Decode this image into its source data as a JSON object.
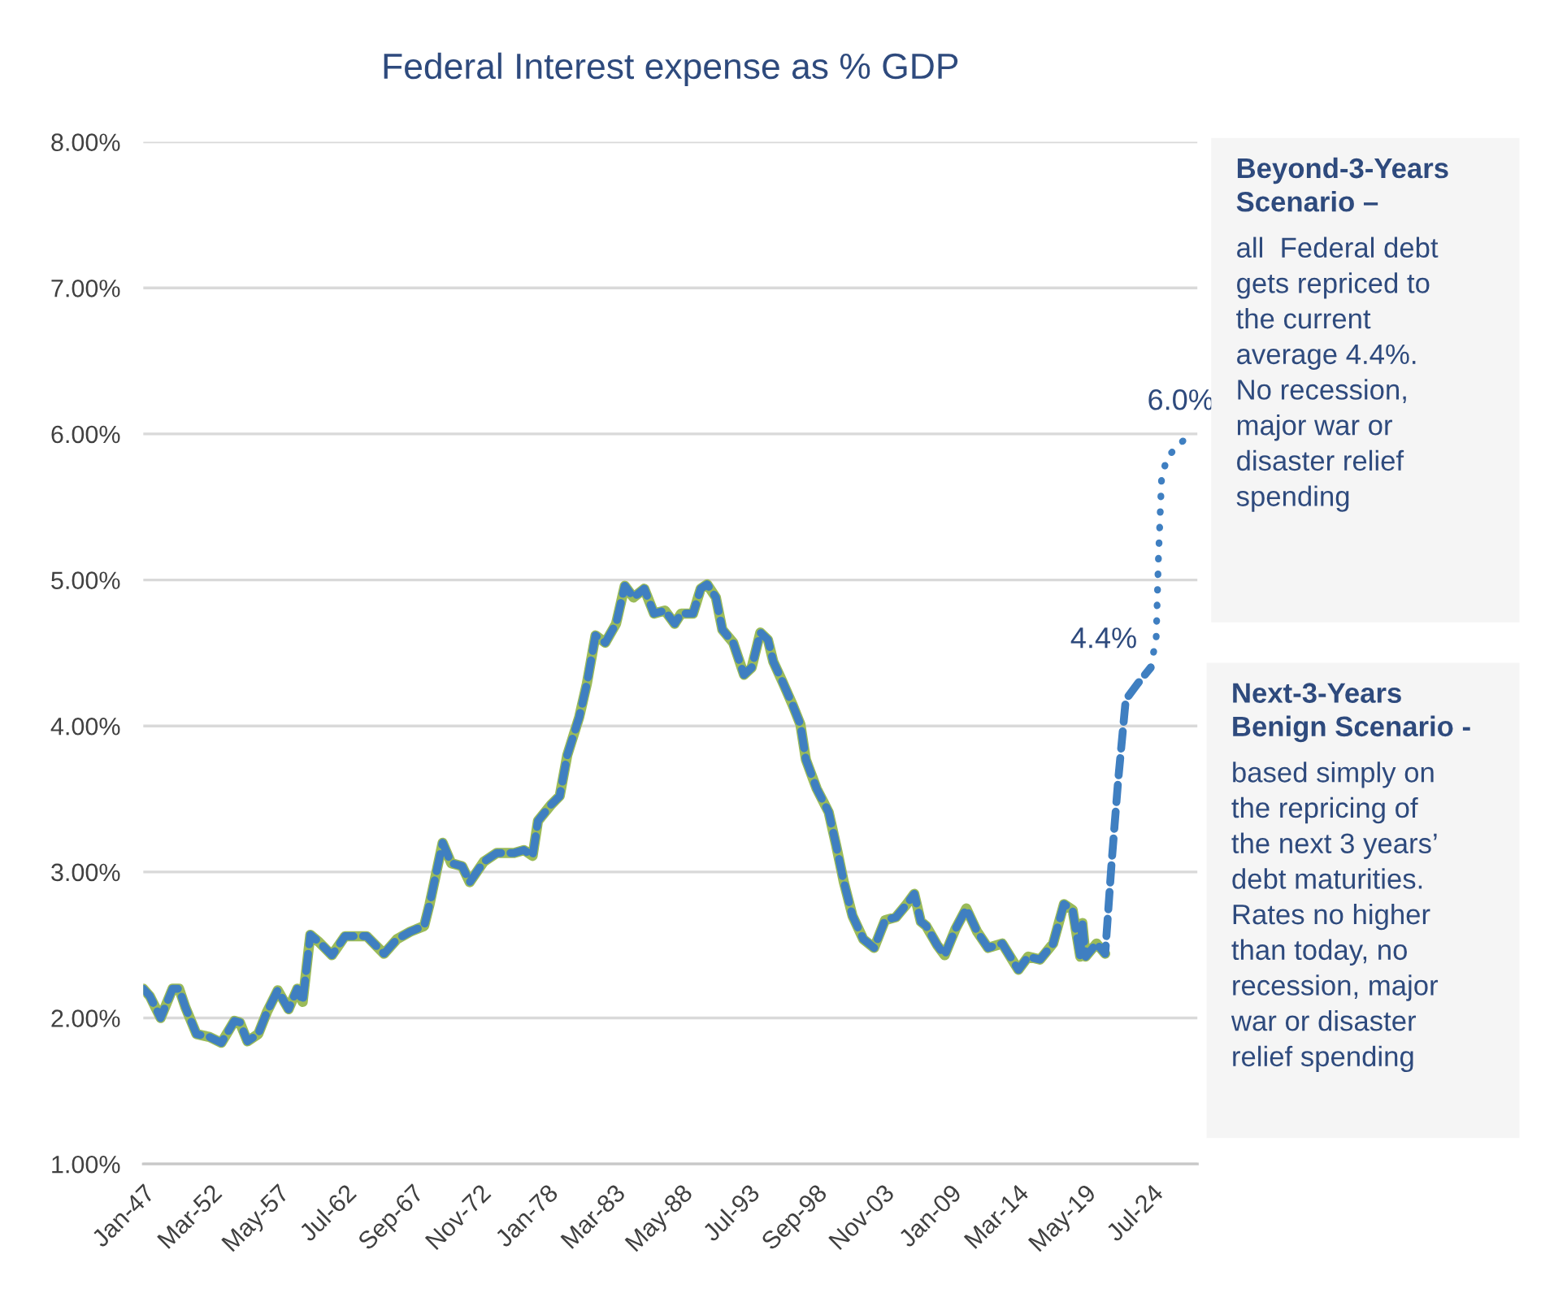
{
  "chart_data": {
    "type": "line",
    "title": "Federal Interest expense as % GDP",
    "xlim": [
      "1947-01",
      "2028-01"
    ],
    "ylim": [
      1,
      8
    ],
    "xticks": [
      {
        "value": "1947-01",
        "label": "Jan-47"
      },
      {
        "value": "1952-03",
        "label": "Mar-52"
      },
      {
        "value": "1957-05",
        "label": "May-57"
      },
      {
        "value": "1962-07",
        "label": "Jul-62"
      },
      {
        "value": "1967-09",
        "label": "Sep-67"
      },
      {
        "value": "1972-11",
        "label": "Nov-72"
      },
      {
        "value": "1978-01",
        "label": "Jan-78"
      },
      {
        "value": "1983-03",
        "label": "Mar-83"
      },
      {
        "value": "1988-05",
        "label": "May-88"
      },
      {
        "value": "1993-07",
        "label": "Jul-93"
      },
      {
        "value": "1998-09",
        "label": "Sep-98"
      },
      {
        "value": "2003-11",
        "label": "Nov-03"
      },
      {
        "value": "2009-01",
        "label": "Jan-09"
      },
      {
        "value": "2014-03",
        "label": "Mar-14"
      },
      {
        "value": "2019-05",
        "label": "May-19"
      },
      {
        "value": "2024-07",
        "label": "Jul-24"
      }
    ],
    "yticks": [
      {
        "value": 1,
        "label": "1.00%"
      },
      {
        "value": 2,
        "label": "2.00%"
      },
      {
        "value": 3,
        "label": "3.00%"
      },
      {
        "value": 4,
        "label": "4.00%"
      },
      {
        "value": 5,
        "label": "5.00%"
      },
      {
        "value": 6,
        "label": "6.00%"
      },
      {
        "value": 7,
        "label": "7.00%"
      },
      {
        "value": 8,
        "label": "8.00%"
      }
    ],
    "grid": "y",
    "x": [
      "1947-01",
      "1947-07",
      "1948-05",
      "1949-04",
      "1949-10",
      "1950-04",
      "1951-02",
      "1952-02",
      "1953-01",
      "1954-01",
      "1954-06",
      "1955-01",
      "1955-11",
      "1956-07",
      "1957-05",
      "1958-03",
      "1958-11",
      "1959-04",
      "1959-11",
      "1960-07",
      "1961-07",
      "1962-07",
      "1964-03",
      "1965-07",
      "1966-07",
      "1967-07",
      "1968-08",
      "1969-01",
      "1970-01",
      "1970-09",
      "1971-07",
      "1972-02",
      "1973-03",
      "1974-03",
      "1975-07",
      "1976-04",
      "1976-12",
      "1977-05",
      "1978-05",
      "1979-01",
      "1979-08",
      "1980-07",
      "1981-02",
      "1981-10",
      "1982-07",
      "1983-05",
      "1984-01",
      "1984-09",
      "1985-07",
      "1986-04",
      "1987-02",
      "1987-11",
      "1988-05",
      "1989-04",
      "1989-11",
      "1990-05",
      "1991-01",
      "1991-07",
      "1992-05",
      "1993-03",
      "1993-10",
      "1994-06",
      "1995-01",
      "1995-06",
      "1996-02",
      "1996-12",
      "1997-07",
      "1997-12",
      "1998-10",
      "1999-09",
      "2000-04",
      "2000-11",
      "2001-07",
      "2002-05",
      "2003-03",
      "2004-01",
      "2004-11",
      "2005-09",
      "2006-04",
      "2006-10",
      "2007-03",
      "2008-01",
      "2008-08",
      "2009-06",
      "2010-04",
      "2011-02",
      "2011-12",
      "2013-01",
      "2014-04",
      "2015-01",
      "2015-12",
      "2016-12",
      "2017-10",
      "2018-06",
      "2019-01",
      "2019-03",
      "2019-06",
      "2020-04",
      "2020-12"
    ],
    "series": [
      {
        "color": "#9bbb59",
        "line_style": "solid",
        "values": [
          2.2,
          2.15,
          2.0,
          2.2,
          2.2,
          2.07,
          1.89,
          1.87,
          1.83,
          1.98,
          1.97,
          1.84,
          1.89,
          2.04,
          2.19,
          2.06,
          2.2,
          2.11,
          2.57,
          2.52,
          2.43,
          2.56,
          2.56,
          2.44,
          2.54,
          2.59,
          2.63,
          2.78,
          3.2,
          3.06,
          3.04,
          2.93,
          3.07,
          3.13,
          3.13,
          3.15,
          3.11,
          3.35,
          3.46,
          3.52,
          3.8,
          4.06,
          4.29,
          4.62,
          4.57,
          4.7,
          4.96,
          4.88,
          4.94,
          4.77,
          4.79,
          4.7,
          4.77,
          4.77,
          4.94,
          4.97,
          4.88,
          4.66,
          4.57,
          4.35,
          4.4,
          4.64,
          4.59,
          4.44,
          4.31,
          4.14,
          4.01,
          3.77,
          3.57,
          3.41,
          3.18,
          2.93,
          2.7,
          2.54,
          2.48,
          2.67,
          2.69,
          2.78,
          2.85,
          2.66,
          2.63,
          2.5,
          2.43,
          2.61,
          2.75,
          2.59,
          2.48,
          2.51,
          2.33,
          2.42,
          2.4,
          2.51,
          2.78,
          2.74,
          2.42,
          2.65,
          2.42,
          2.51,
          2.44
        ]
      },
      {
        "color": "#3f7fc1",
        "line_style": "dashed",
        "x": [
          "1947-01",
          "1947-07",
          "1948-05",
          "1949-04",
          "1949-10",
          "1950-04",
          "1951-02",
          "1952-02",
          "1953-01",
          "1954-01",
          "1954-06",
          "1955-01",
          "1955-11",
          "1956-07",
          "1957-05",
          "1958-03",
          "1958-11",
          "1959-04",
          "1959-11",
          "1960-07",
          "1961-07",
          "1962-07",
          "1964-03",
          "1965-07",
          "1966-07",
          "1967-07",
          "1968-08",
          "1969-01",
          "1970-01",
          "1970-09",
          "1971-07",
          "1972-02",
          "1973-03",
          "1974-03",
          "1975-07",
          "1976-04",
          "1976-12",
          "1977-05",
          "1978-05",
          "1979-01",
          "1979-08",
          "1980-07",
          "1981-02",
          "1981-10",
          "1982-07",
          "1983-05",
          "1984-01",
          "1984-09",
          "1985-07",
          "1986-04",
          "1987-02",
          "1987-11",
          "1988-05",
          "1989-04",
          "1989-11",
          "1990-05",
          "1991-01",
          "1991-07",
          "1992-05",
          "1993-03",
          "1993-10",
          "1994-06",
          "1995-01",
          "1995-06",
          "1996-02",
          "1996-12",
          "1997-07",
          "1997-12",
          "1998-10",
          "1999-09",
          "2000-04",
          "2000-11",
          "2001-07",
          "2002-05",
          "2003-03",
          "2004-01",
          "2004-11",
          "2005-09",
          "2006-04",
          "2006-10",
          "2007-03",
          "2008-01",
          "2008-08",
          "2009-06",
          "2010-04",
          "2011-02",
          "2011-12",
          "2013-01",
          "2014-04",
          "2015-01",
          "2015-12",
          "2016-12",
          "2017-10",
          "2018-06",
          "2019-01",
          "2019-03",
          "2019-06",
          "2020-04",
          "2020-12",
          "2021-06",
          "2021-12",
          "2022-07",
          "2023-06",
          "2024-06"
        ],
        "values": [
          2.2,
          2.15,
          2.0,
          2.2,
          2.2,
          2.07,
          1.89,
          1.87,
          1.83,
          1.98,
          1.97,
          1.84,
          1.89,
          2.04,
          2.19,
          2.06,
          2.2,
          2.11,
          2.57,
          2.52,
          2.43,
          2.56,
          2.56,
          2.44,
          2.54,
          2.59,
          2.63,
          2.78,
          3.2,
          3.06,
          3.04,
          2.93,
          3.07,
          3.13,
          3.13,
          3.15,
          3.11,
          3.35,
          3.46,
          3.52,
          3.8,
          4.06,
          4.29,
          4.62,
          4.57,
          4.7,
          4.96,
          4.88,
          4.94,
          4.77,
          4.79,
          4.7,
          4.77,
          4.77,
          4.94,
          4.97,
          4.88,
          4.66,
          4.57,
          4.35,
          4.4,
          4.64,
          4.59,
          4.44,
          4.31,
          4.14,
          4.01,
          3.77,
          3.57,
          3.41,
          3.18,
          2.93,
          2.7,
          2.54,
          2.48,
          2.67,
          2.69,
          2.78,
          2.85,
          2.66,
          2.63,
          2.5,
          2.43,
          2.61,
          2.75,
          2.59,
          2.48,
          2.51,
          2.33,
          2.42,
          2.4,
          2.51,
          2.78,
          2.74,
          2.42,
          2.65,
          2.42,
          2.51,
          2.44,
          3.07,
          3.63,
          4.18,
          4.29,
          4.4
        ],
        "value_labels": [
          null,
          null,
          null,
          null,
          null,
          null,
          null,
          null,
          null,
          null,
          null,
          null,
          null,
          null,
          null,
          null,
          null,
          null,
          null,
          null,
          null,
          null,
          null,
          null,
          null,
          null,
          null,
          null,
          null,
          null,
          null,
          null,
          null,
          null,
          null,
          null,
          null,
          null,
          null,
          null,
          null,
          null,
          null,
          null,
          null,
          null,
          null,
          null,
          null,
          null,
          null,
          null,
          null,
          null,
          null,
          null,
          null,
          null,
          null,
          null,
          null,
          null,
          null,
          null,
          null,
          null,
          null,
          null,
          null,
          null,
          null,
          null,
          null,
          null,
          null,
          null,
          null,
          null,
          null,
          null,
          null,
          null,
          null,
          null,
          null,
          null,
          null,
          null,
          null,
          null,
          null,
          null,
          null,
          null,
          null,
          null,
          null,
          null,
          null,
          null,
          null,
          null,
          null,
          "4.4%"
        ]
      },
      {
        "color": "#3f7fc1",
        "line_style": "dotted",
        "x": [
          "2024-06",
          "2024-11",
          "2025-01",
          "2025-04",
          "2025-09",
          "2027-06"
        ],
        "values": [
          4.4,
          4.6,
          5.13,
          5.69,
          5.84,
          6.0
        ],
        "value_labels": [
          null,
          null,
          null,
          null,
          null,
          "6.0%"
        ]
      }
    ],
    "annotations": [
      "Beyond-3-Years\nScenario –",
      "all  Federal debt\ngets repriced to\nthe current\naverage 4.4%.\nNo recession,\nmajor war or\ndisaster relief\nspending",
      "Next-3-Years\nBenign Scenario -",
      "based simply on\nthe repricing of\nthe next 3 years’\ndebt maturities.\nRates no higher\nthan today, no\nrecession, major\nwar or disaster\nrelief spending"
    ]
  }
}
